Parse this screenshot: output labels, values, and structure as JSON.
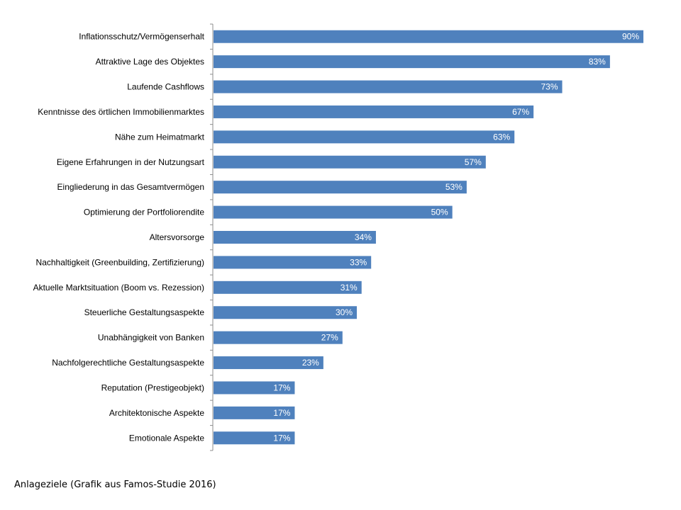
{
  "caption": "Anlageziele (Grafik aus Famos-Studie 2016)",
  "chart_data": {
    "type": "bar",
    "orientation": "horizontal",
    "categories": [
      "Inflationsschutz/Vermögenserhalt",
      "Attraktive Lage des Objektes",
      "Laufende Cashflows",
      "Kenntnisse des örtlichen Immobilienmarktes",
      "Nähe zum Heimatmarkt",
      "Eigene Erfahrungen in der Nutzungsart",
      "Eingliederung in das Gesamtvermögen",
      "Optimierung der Portfoliorendite",
      "Altersvorsorge",
      "Nachhaltigkeit (Greenbuilding, Zertifizierung)",
      "Aktuelle Marktsituation (Boom vs. Rezession)",
      "Steuerliche Gestaltungsaspekte",
      "Unabhängigkeit von Banken",
      "Nachfolgerechtliche Gestaltungsaspekte",
      "Reputation (Prestigeobjekt)",
      "Architektonische Aspekte",
      "Emotionale Aspekte"
    ],
    "values": [
      90,
      83,
      73,
      67,
      63,
      57,
      53,
      50,
      34,
      33,
      31,
      30,
      27,
      23,
      17,
      17,
      17
    ],
    "value_labels": [
      "90%",
      "83%",
      "73%",
      "67%",
      "63%",
      "57%",
      "53%",
      "50%",
      "34%",
      "33%",
      "31%",
      "30%",
      "27%",
      "23%",
      "17%",
      "17%",
      "17%"
    ],
    "xlim": [
      0,
      100
    ],
    "grid": false,
    "bar_color": "#4f81bd",
    "axis_color": "#8c8c8c"
  }
}
